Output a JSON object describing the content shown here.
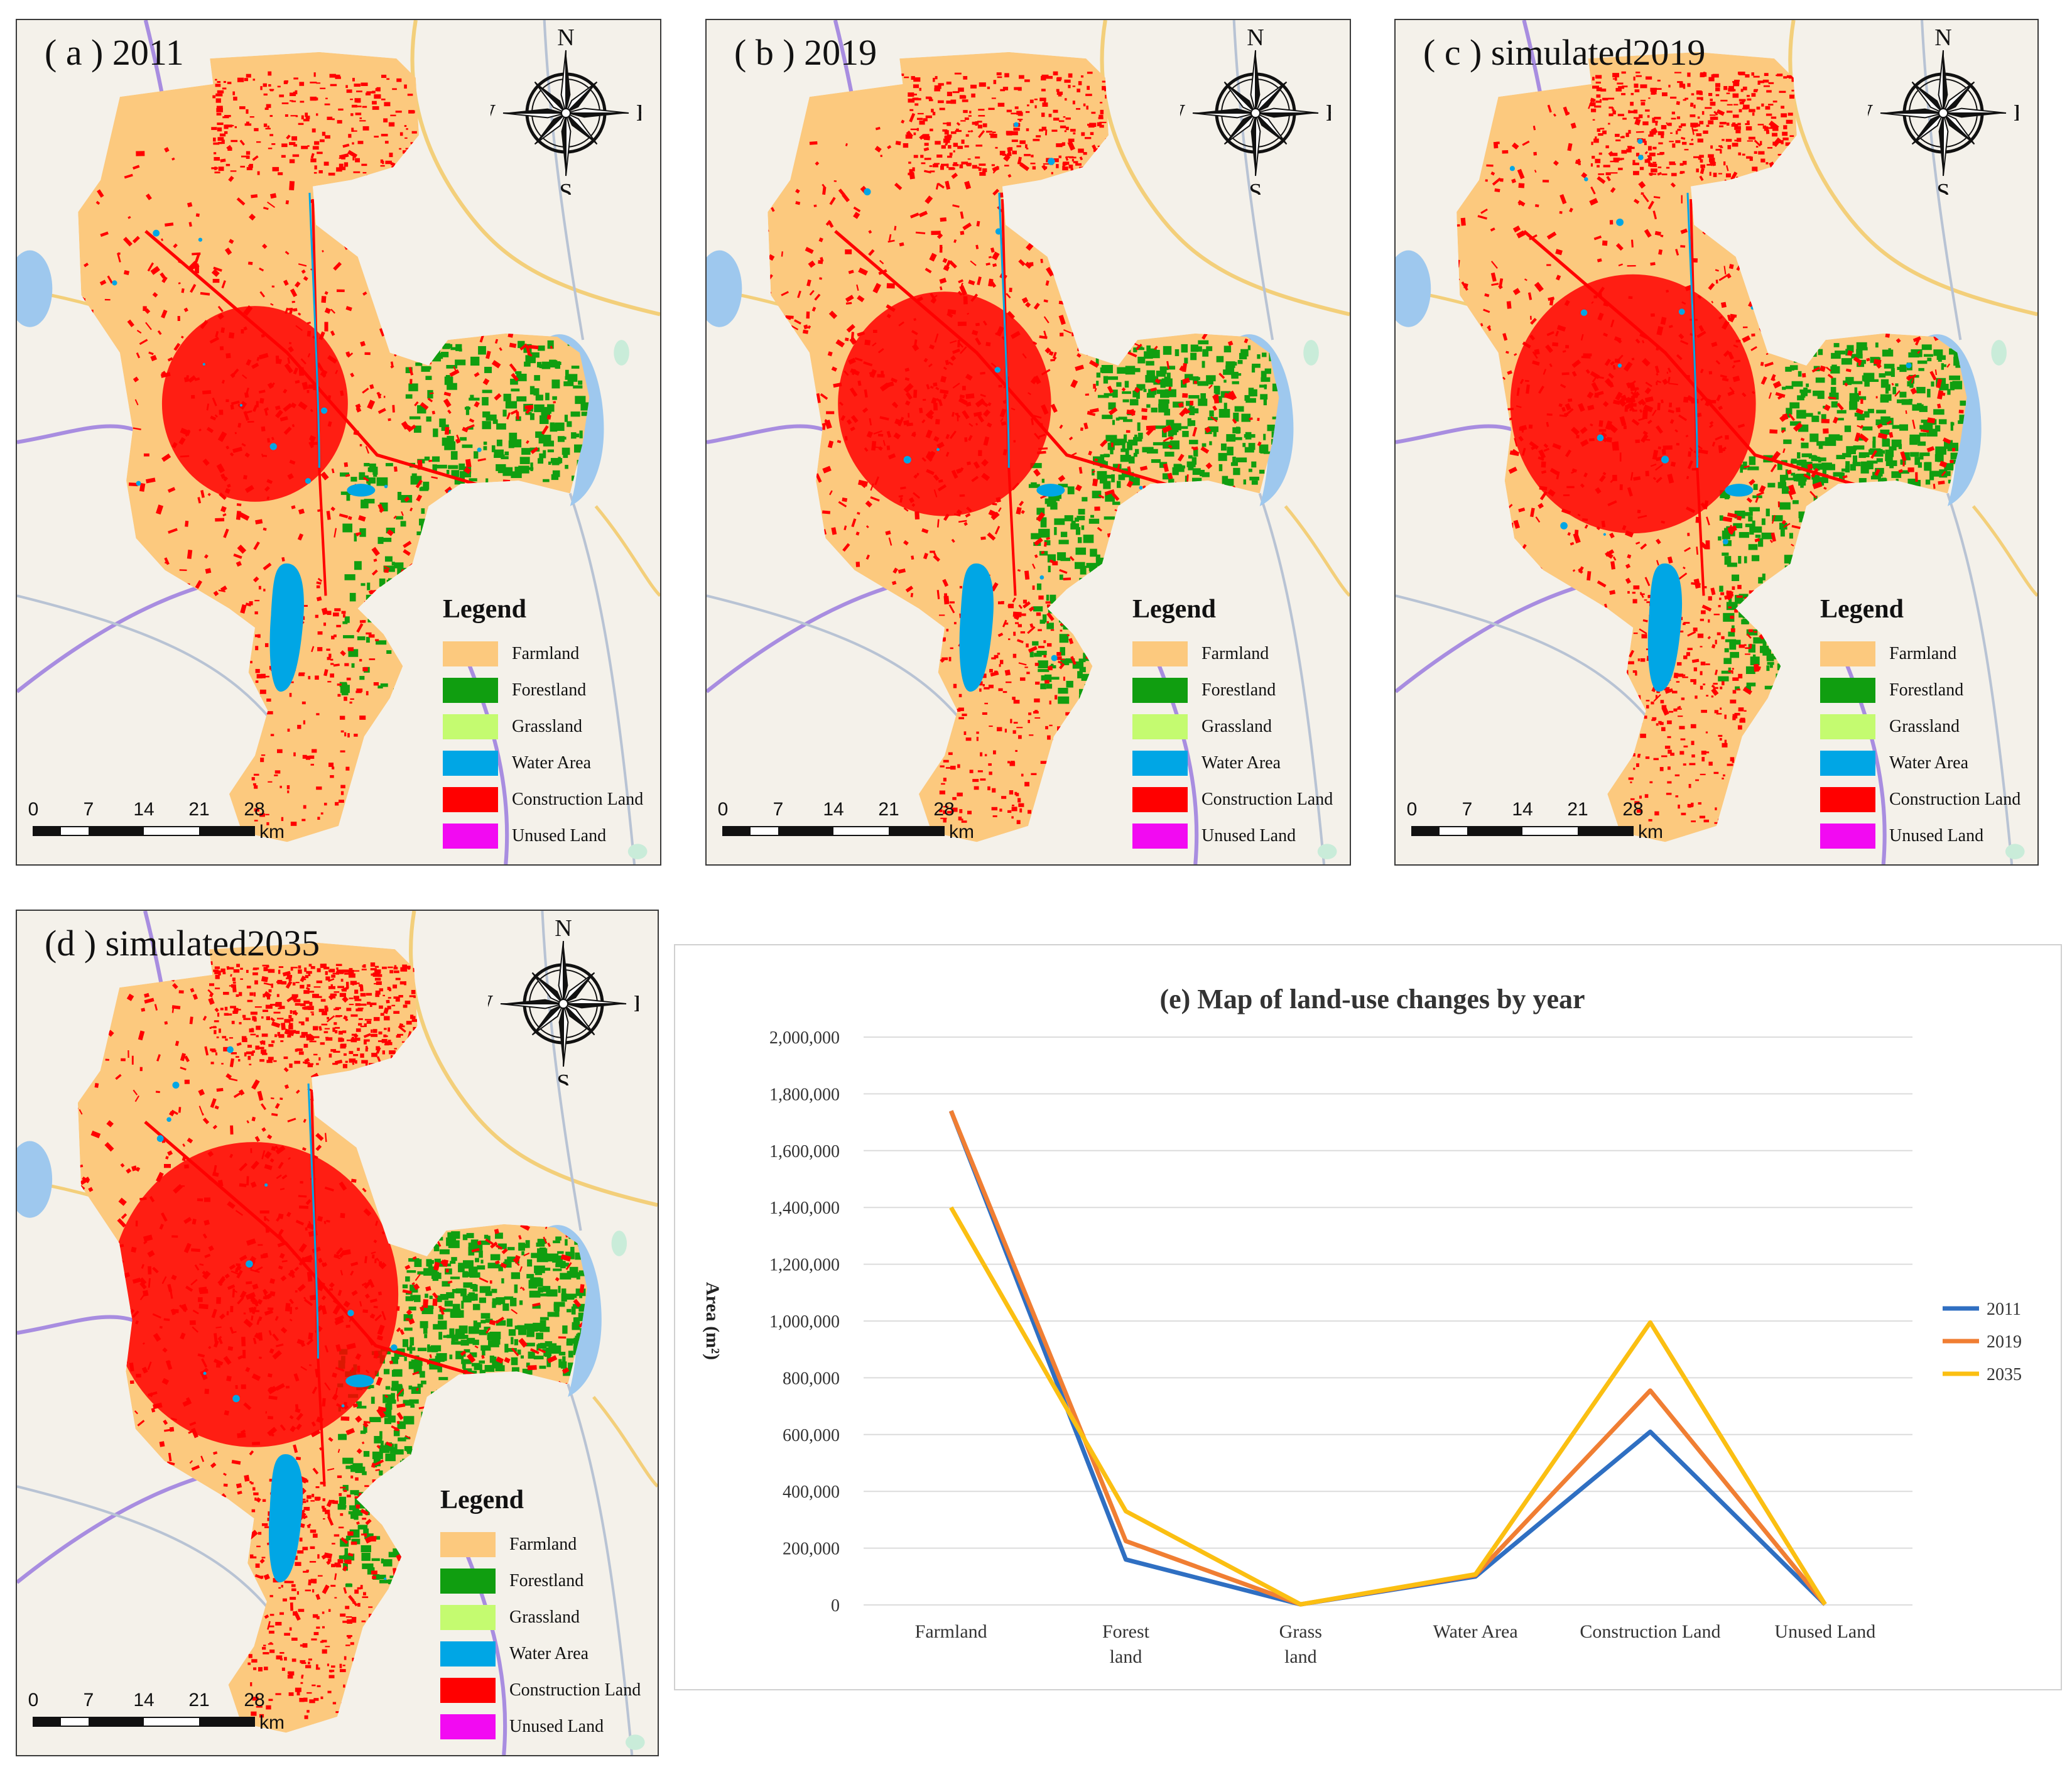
{
  "maps": [
    {
      "id": "a",
      "title": "( a ) 2011",
      "variant": "a"
    },
    {
      "id": "b",
      "title": "( b ) 2019",
      "variant": "b"
    },
    {
      "id": "c",
      "title": "( c ) simulated2019",
      "variant": "c"
    },
    {
      "id": "d",
      "title": "(d ) simulated2035",
      "variant": "d"
    }
  ],
  "compass": {
    "n": "N",
    "s": "S",
    "e": "E",
    "w": "W"
  },
  "legend": {
    "title": "Legend",
    "items": [
      {
        "label": "Farmland",
        "color": "#fcc97e"
      },
      {
        "label": "Forestland",
        "color": "#109e10"
      },
      {
        "label": "Grassland",
        "color": "#c4fb70"
      },
      {
        "label": "Water Area",
        "color": "#00a6e5"
      },
      {
        "label": "Construction Land",
        "color": "#ff0000"
      },
      {
        "label": "Unused Land",
        "color": "#f20af2"
      }
    ]
  },
  "scalebar": {
    "ticks": [
      "0",
      "7",
      "14",
      "21",
      "28"
    ],
    "unit": "km"
  },
  "colors": {
    "road_yellow": "#f3cf7a",
    "road_purple": "#a88de0",
    "road_grey": "#b8c3d4",
    "lake": "#9ec8ee",
    "greenpatch": "#c9ecd9",
    "background": "#f4f1ea"
  },
  "chart_data": {
    "type": "line",
    "title": "(e) Map of land-use changes by year",
    "ylabel": "Area (m²)",
    "xlabel": "",
    "ylim": [
      0,
      2000000
    ],
    "yticks": [
      "0",
      "200,000",
      "400,000",
      "600,000",
      "800,000",
      "1,000,000",
      "1,200,000",
      "1,400,000",
      "1,600,000",
      "1,800,000",
      "2,000,000"
    ],
    "categories": [
      [
        "Farmland"
      ],
      [
        "Forest",
        "land"
      ],
      [
        "Grass",
        "land"
      ],
      [
        "Water Area"
      ],
      [
        "Construction Land"
      ],
      [
        "Unused Land"
      ]
    ],
    "series": [
      {
        "name": "2011",
        "color": "#2f6fc2",
        "values": [
          1740000,
          160000,
          2000,
          100000,
          610000,
          2000
        ]
      },
      {
        "name": "2019",
        "color": "#f07e33",
        "values": [
          1740000,
          225000,
          2000,
          105000,
          755000,
          2000
        ]
      },
      {
        "name": "2035",
        "color": "#fbbf12",
        "values": [
          1400000,
          330000,
          2000,
          108000,
          995000,
          2000
        ]
      }
    ],
    "legend_position": "right"
  }
}
